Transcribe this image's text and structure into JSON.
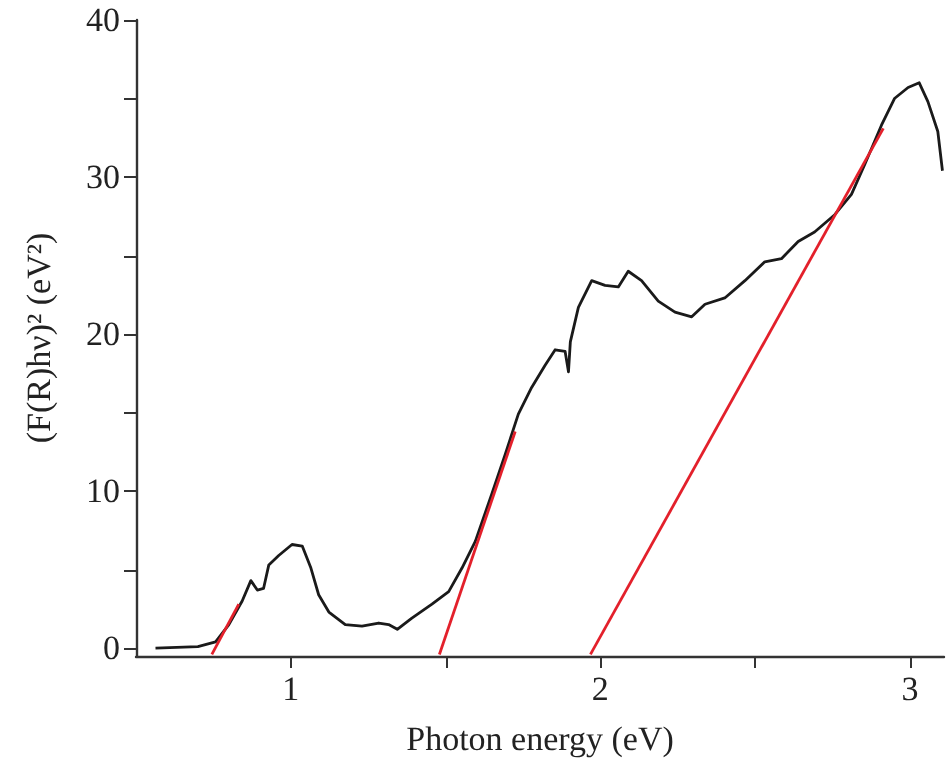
{
  "chart_data": {
    "type": "line",
    "xlabel": "Photon energy (eV)",
    "ylabel": "(F(R)hν)² (eV²)",
    "xlim": [
      0.5,
      3.11
    ],
    "ylim": [
      -0.5,
      40
    ],
    "xticks": [
      {
        "value": 1,
        "label": "1"
      },
      {
        "value": 1.5,
        "label": null
      },
      {
        "value": 2,
        "label": "2"
      },
      {
        "value": 2.5,
        "label": null
      },
      {
        "value": 3,
        "label": "3"
      }
    ],
    "yticks": [
      {
        "value": 0,
        "label": "0"
      },
      {
        "value": 5,
        "label": null
      },
      {
        "value": 10,
        "label": "10"
      },
      {
        "value": 15,
        "label": null
      },
      {
        "value": 20,
        "label": "20"
      },
      {
        "value": 25,
        "label": null
      },
      {
        "value": 30,
        "label": "30"
      },
      {
        "value": 35,
        "label": null
      },
      {
        "value": 40,
        "label": "40"
      }
    ],
    "grid": false,
    "marker": "none",
    "line_style": "solid",
    "series": [
      {
        "color": "#1a1a1a",
        "x": [
          0.563,
          0.7,
          0.757,
          0.8,
          0.843,
          0.871,
          0.892,
          0.912,
          0.929,
          0.961,
          1.004,
          1.037,
          1.065,
          1.09,
          1.123,
          1.176,
          1.23,
          1.284,
          1.316,
          1.344,
          1.39,
          1.456,
          1.51,
          1.553,
          1.596,
          1.649,
          1.692,
          1.735,
          1.778,
          1.821,
          1.854,
          1.886,
          1.897,
          1.903,
          1.929,
          1.972,
          2.015,
          2.058,
          2.09,
          2.133,
          2.187,
          2.241,
          2.295,
          2.338,
          2.402,
          2.467,
          2.531,
          2.585,
          2.639,
          2.692,
          2.757,
          2.811,
          2.854,
          2.908,
          2.95,
          2.994,
          3.03,
          3.058,
          3.09,
          3.105
        ],
        "values": [
          0,
          0.1,
          0.4,
          1.5,
          3.0,
          4.3,
          3.7,
          3.8,
          5.3,
          5.9,
          6.6,
          6.5,
          5.1,
          3.4,
          2.3,
          1.5,
          1.4,
          1.6,
          1.5,
          1.2,
          1.9,
          2.8,
          3.6,
          5.1,
          6.8,
          9.8,
          12.3,
          14.9,
          16.6,
          18.0,
          19.0,
          18.9,
          17.6,
          19.5,
          21.7,
          23.4,
          23.1,
          23.0,
          24.0,
          23.4,
          22.1,
          21.4,
          21.1,
          21.9,
          22.3,
          23.4,
          24.6,
          24.8,
          25.9,
          26.5,
          27.6,
          28.9,
          30.8,
          33.3,
          35.0,
          35.7,
          36.0,
          34.8,
          32.9,
          30.4
        ]
      },
      {
        "color": "#e3202b",
        "x": [
          0.745,
          0.832
        ],
        "values": [
          -0.4,
          2.8
        ]
      },
      {
        "color": "#e3202b",
        "x": [
          1.48,
          1.725
        ],
        "values": [
          -0.4,
          13.8
        ]
      },
      {
        "color": "#e3202b",
        "x": [
          1.968,
          2.914
        ],
        "values": [
          -0.4,
          33.1
        ]
      }
    ]
  }
}
